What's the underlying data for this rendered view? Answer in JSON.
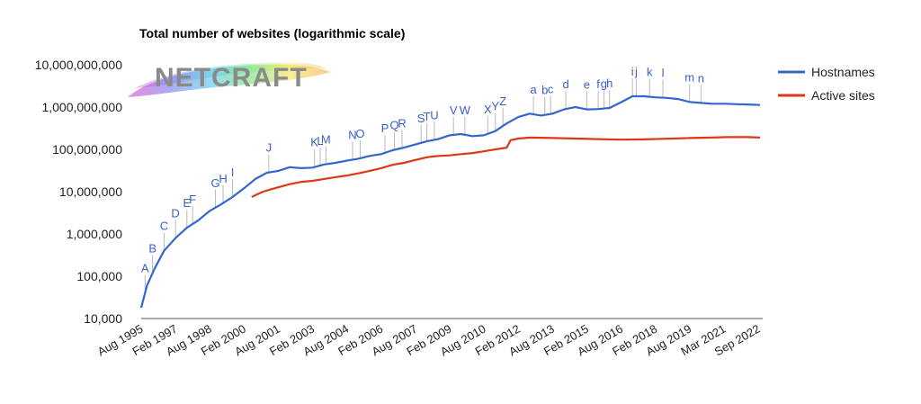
{
  "chart_data": {
    "type": "line",
    "title": "Total number of websites (logarithmic scale)",
    "xlabel": "",
    "ylabel": "",
    "y_scale": "log",
    "ylim": [
      10000,
      10000000000
    ],
    "xlim": [
      "1995-08",
      "2022-09"
    ],
    "y_ticks": [
      "10,000",
      "100,000",
      "1,000,000",
      "10,000,000",
      "100,000,000",
      "1,000,000,000",
      "10,000,000,000"
    ],
    "x_ticks": [
      "Aug 1995",
      "Feb 1997",
      "Aug 1998",
      "Feb 2000",
      "Aug 2001",
      "Feb 2003",
      "Aug 2004",
      "Feb 2006",
      "Aug 2007",
      "Feb 2009",
      "Aug 2010",
      "Feb 2012",
      "Aug 2013",
      "Feb 2015",
      "Aug 2016",
      "Feb 2018",
      "Aug 2019",
      "Mar 2021",
      "Sep 2022"
    ],
    "grid": false,
    "legend_position": "right",
    "series": [
      {
        "name": "Hostnames",
        "color": "#3366cc",
        "points": [
          [
            "1995-08",
            18000
          ],
          [
            "1995-11",
            60000
          ],
          [
            "1996-03",
            150000
          ],
          [
            "1996-08",
            400000
          ],
          [
            "1997-02",
            800000
          ],
          [
            "1997-08",
            1400000
          ],
          [
            "1998-02",
            2100000
          ],
          [
            "1998-08",
            3500000
          ],
          [
            "1999-02",
            5000000
          ],
          [
            "1999-08",
            7500000
          ],
          [
            "2000-02",
            12000000
          ],
          [
            "2000-08",
            20000000
          ],
          [
            "2001-02",
            28000000
          ],
          [
            "2001-08",
            31000000
          ],
          [
            "2002-02",
            38000000
          ],
          [
            "2002-08",
            36000000
          ],
          [
            "2003-02",
            37000000
          ],
          [
            "2003-08",
            44000000
          ],
          [
            "2004-02",
            48000000
          ],
          [
            "2004-08",
            54000000
          ],
          [
            "2005-02",
            60000000
          ],
          [
            "2005-08",
            70000000
          ],
          [
            "2006-02",
            77000000
          ],
          [
            "2006-08",
            95000000
          ],
          [
            "2007-02",
            110000000
          ],
          [
            "2007-08",
            130000000
          ],
          [
            "2008-02",
            155000000
          ],
          [
            "2008-08",
            175000000
          ],
          [
            "2009-02",
            215000000
          ],
          [
            "2009-08",
            230000000
          ],
          [
            "2010-02",
            205000000
          ],
          [
            "2010-08",
            215000000
          ],
          [
            "2011-02",
            270000000
          ],
          [
            "2011-08",
            410000000
          ],
          [
            "2012-02",
            580000000
          ],
          [
            "2012-08",
            700000000
          ],
          [
            "2013-02",
            630000000
          ],
          [
            "2013-08",
            700000000
          ],
          [
            "2014-02",
            880000000
          ],
          [
            "2014-08",
            1000000000
          ],
          [
            "2015-02",
            880000000
          ],
          [
            "2015-08",
            900000000
          ],
          [
            "2016-02",
            950000000
          ],
          [
            "2016-08",
            1300000000
          ],
          [
            "2017-02",
            1800000000
          ],
          [
            "2017-08",
            1800000000
          ],
          [
            "2018-02",
            1700000000
          ],
          [
            "2018-08",
            1650000000
          ],
          [
            "2019-02",
            1550000000
          ],
          [
            "2019-08",
            1320000000
          ],
          [
            "2020-02",
            1250000000
          ],
          [
            "2020-08",
            1200000000
          ],
          [
            "2021-03",
            1200000000
          ],
          [
            "2021-09",
            1170000000
          ],
          [
            "2022-03",
            1150000000
          ],
          [
            "2022-09",
            1120000000
          ]
        ]
      },
      {
        "name": "Active sites",
        "color": "#dc3912",
        "points": [
          [
            "2000-06",
            7500000
          ],
          [
            "2000-12",
            10000000
          ],
          [
            "2001-06",
            12000000
          ],
          [
            "2002-02",
            15000000
          ],
          [
            "2002-08",
            17000000
          ],
          [
            "2003-02",
            18000000
          ],
          [
            "2003-08",
            20000000
          ],
          [
            "2004-02",
            22000000
          ],
          [
            "2004-08",
            24000000
          ],
          [
            "2005-02",
            27000000
          ],
          [
            "2005-08",
            31000000
          ],
          [
            "2006-02",
            36000000
          ],
          [
            "2006-08",
            43000000
          ],
          [
            "2007-02",
            48000000
          ],
          [
            "2007-08",
            56000000
          ],
          [
            "2008-02",
            65000000
          ],
          [
            "2008-08",
            70000000
          ],
          [
            "2009-02",
            72000000
          ],
          [
            "2009-08",
            77000000
          ],
          [
            "2010-02",
            82000000
          ],
          [
            "2010-08",
            90000000
          ],
          [
            "2011-02",
            100000000
          ],
          [
            "2011-08",
            110000000
          ],
          [
            "2011-10",
            165000000
          ],
          [
            "2012-02",
            180000000
          ],
          [
            "2012-08",
            190000000
          ],
          [
            "2013-08",
            185000000
          ],
          [
            "2014-08",
            180000000
          ],
          [
            "2015-08",
            175000000
          ],
          [
            "2016-08",
            170000000
          ],
          [
            "2017-08",
            172000000
          ],
          [
            "2018-08",
            178000000
          ],
          [
            "2019-08",
            185000000
          ],
          [
            "2020-08",
            190000000
          ],
          [
            "2021-03",
            195000000
          ],
          [
            "2022-03",
            195000000
          ],
          [
            "2022-09",
            190000000
          ]
        ]
      }
    ],
    "annotations": [
      {
        "label": "A",
        "x": "1995-10"
      },
      {
        "label": "B",
        "x": "1996-02"
      },
      {
        "label": "C",
        "x": "1996-08"
      },
      {
        "label": "D",
        "x": "1997-02"
      },
      {
        "label": "E",
        "x": "1997-08"
      },
      {
        "label": "F",
        "x": "1997-11"
      },
      {
        "label": "G",
        "x": "1998-11"
      },
      {
        "label": "H",
        "x": "1999-03"
      },
      {
        "label": "I",
        "x": "1999-08"
      },
      {
        "label": "J",
        "x": "2001-03"
      },
      {
        "label": "K",
        "x": "2003-03"
      },
      {
        "label": "L",
        "x": "2003-06"
      },
      {
        "label": "M",
        "x": "2003-09"
      },
      {
        "label": "N",
        "x": "2004-11"
      },
      {
        "label": "O",
        "x": "2005-03"
      },
      {
        "label": "P",
        "x": "2006-04"
      },
      {
        "label": "Q",
        "x": "2006-09"
      },
      {
        "label": "R",
        "x": "2007-01"
      },
      {
        "label": "S",
        "x": "2007-11"
      },
      {
        "label": "T",
        "x": "2008-02"
      },
      {
        "label": "U",
        "x": "2008-06"
      },
      {
        "label": "V",
        "x": "2009-04"
      },
      {
        "label": "W",
        "x": "2009-10"
      },
      {
        "label": "X",
        "x": "2010-10"
      },
      {
        "label": "Y",
        "x": "2011-02"
      },
      {
        "label": "Z",
        "x": "2011-06"
      },
      {
        "label": "a",
        "x": "2012-10"
      },
      {
        "label": "b",
        "x": "2013-04"
      },
      {
        "label": "c",
        "x": "2013-07"
      },
      {
        "label": "d",
        "x": "2014-03"
      },
      {
        "label": "e",
        "x": "2015-02"
      },
      {
        "label": "f",
        "x": "2015-08"
      },
      {
        "label": "g",
        "x": "2015-11"
      },
      {
        "label": "h",
        "x": "2016-02"
      },
      {
        "label": "i",
        "x": "2017-02"
      },
      {
        "label": "j",
        "x": "2017-04"
      },
      {
        "label": "k",
        "x": "2017-11"
      },
      {
        "label": "l",
        "x": "2018-06"
      },
      {
        "label": "m",
        "x": "2019-08"
      },
      {
        "label": "n",
        "x": "2020-02"
      }
    ]
  },
  "logo": {
    "name": "netcraft-logo",
    "text": "NETCRAFT"
  }
}
